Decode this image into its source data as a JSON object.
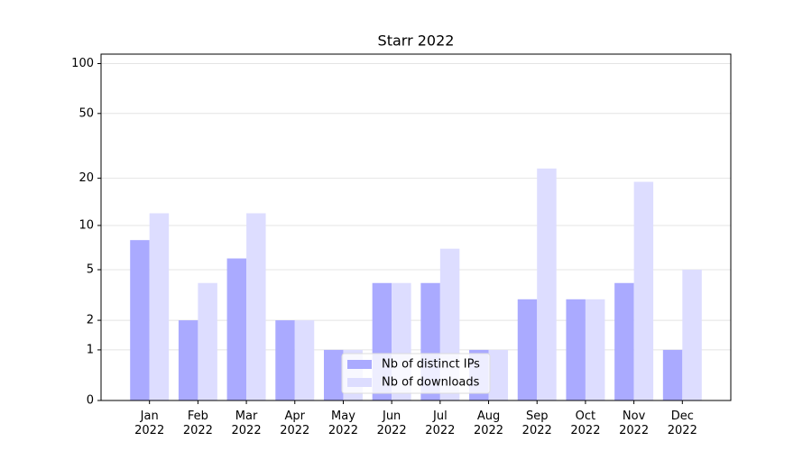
{
  "chart_data": {
    "type": "bar",
    "title": "Starr 2022",
    "categories": [
      "Jan 2022",
      "Feb 2022",
      "Mar 2022",
      "Apr 2022",
      "May 2022",
      "Jun 2022",
      "Jul 2022",
      "Aug 2022",
      "Sep 2022",
      "Oct 2022",
      "Nov 2022",
      "Dec 2022"
    ],
    "series": [
      {
        "name": "Nb of distinct IPs",
        "color": "#aaaaff",
        "values": [
          8,
          2,
          6,
          2,
          1,
          4,
          4,
          1,
          3,
          3,
          4,
          1
        ]
      },
      {
        "name": "Nb of downloads",
        "color": "#ddddff",
        "values": [
          12,
          4,
          12,
          2,
          1,
          4,
          7,
          1,
          23,
          3,
          19,
          5
        ]
      }
    ],
    "yscale": "symlog",
    "ylim": [
      0,
      114
    ],
    "yticks": [
      0,
      1,
      2,
      5,
      10,
      20,
      50,
      100
    ],
    "grid": true,
    "legend": "lower center"
  }
}
